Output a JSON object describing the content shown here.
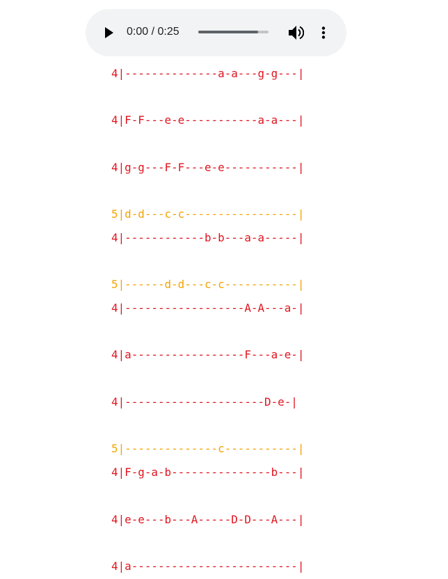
{
  "audio": {
    "time_display": "0:00 / 0:25",
    "progress_fraction": 0.85,
    "icons": [
      "play-icon",
      "volume-icon",
      "more-vert-icon"
    ]
  },
  "colors": {
    "octave_4": "#e0141f",
    "octave_5": "#f5a300"
  },
  "tab_lines": [
    "4|--------------a-a---g-g---|",
    "4|F-F---e-e-----------a-a---|",
    "4|g-g---F-F---e-e-----------|",
    "5|d-d---c-c-----------------|",
    "4|------------b-b---a-a-----|",
    "5|------d-d---c-c-----------|",
    "4|------------------A-A---a-|",
    "4|a-----------------F---a-e-|",
    "4|---------------------D-e-|",
    "5|--------------c-----------|",
    "4|F-g-a-b---------------b---|",
    "4|e-e---b---A-----D-D---A---|",
    "4|a-------------------------|"
  ]
}
